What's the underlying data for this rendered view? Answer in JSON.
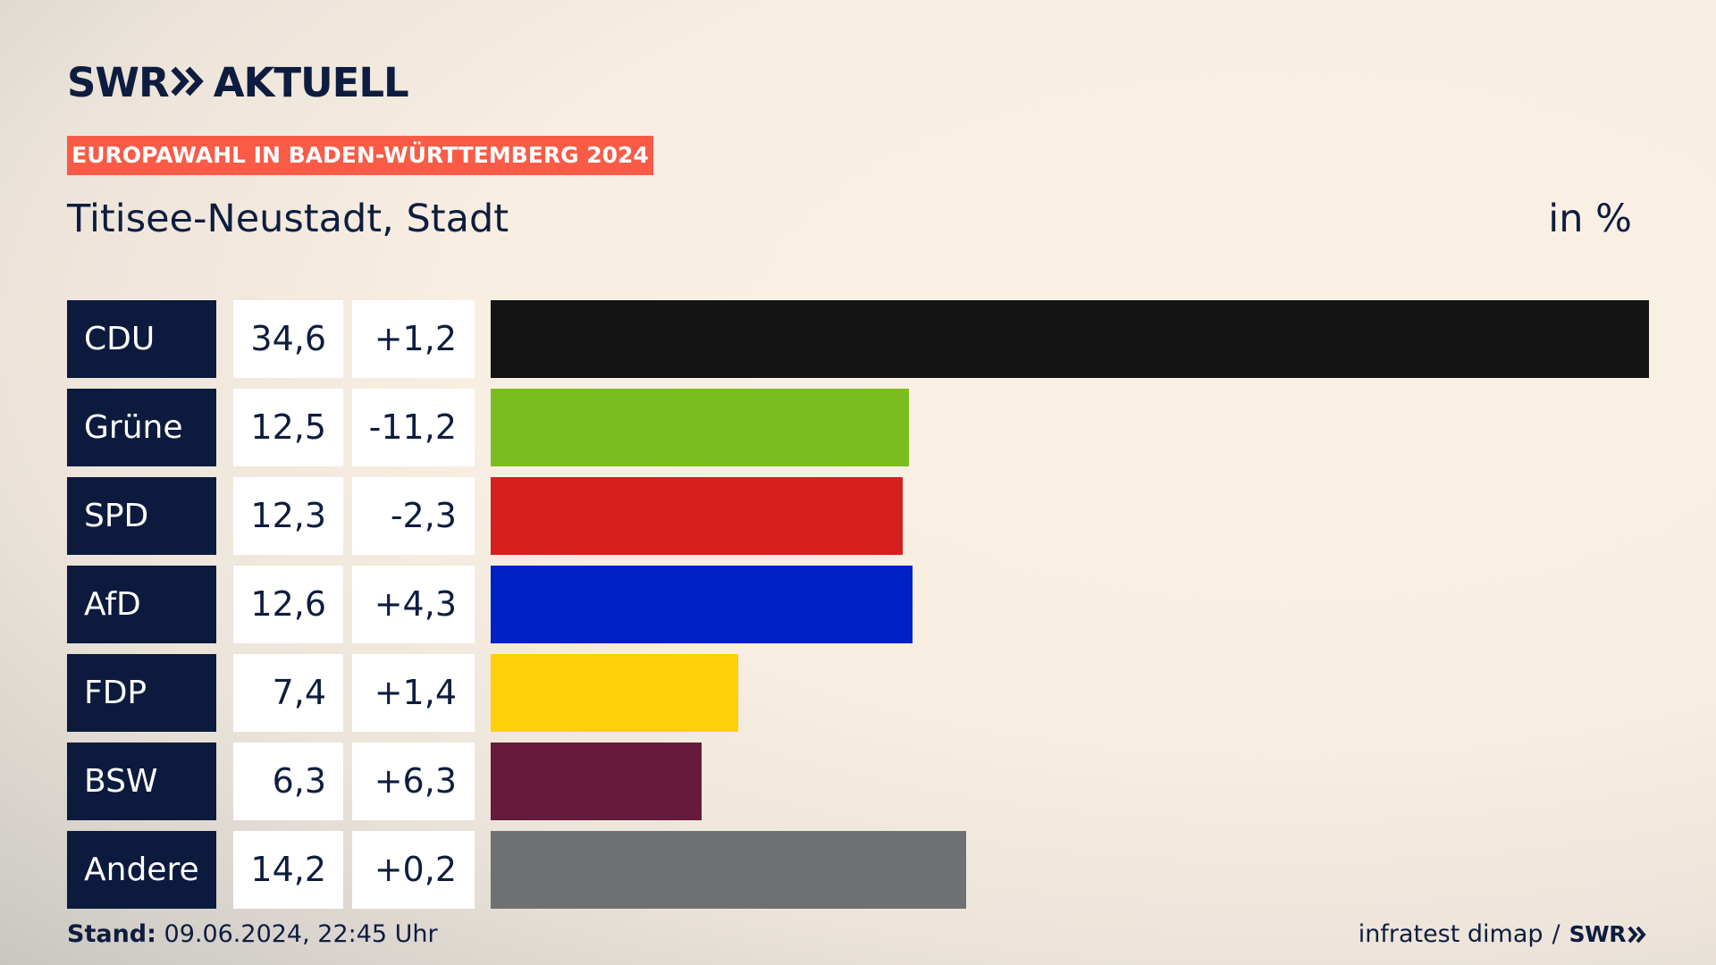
{
  "brand": {
    "logo_prefix": "SWR",
    "logo_suffix": "AKTUELL",
    "logo_icon": "double-chevron-right-icon"
  },
  "tag": "EUROPAWAHL IN BADEN-WÜRTTEMBERG 2024",
  "subtitle": "Titisee-Neustadt, Stadt",
  "unit": "in %",
  "chart_data": {
    "type": "bar",
    "orientation": "horizontal",
    "categories": [
      "CDU",
      "Grüne",
      "SPD",
      "AfD",
      "FDP",
      "BSW",
      "Andere"
    ],
    "values": [
      34.6,
      12.5,
      12.3,
      12.6,
      7.4,
      6.3,
      14.2
    ],
    "value_labels": [
      "34,6",
      "12,5",
      "12,3",
      "12,6",
      "7,4",
      "6,3",
      "14,2"
    ],
    "changes": [
      1.2,
      -11.2,
      -2.3,
      4.3,
      1.4,
      6.3,
      0.2
    ],
    "change_labels": [
      "+1,2",
      "-11,2",
      "-2,3",
      "+4,3",
      "+1,4",
      "+6,3",
      "+0,2"
    ],
    "colors": [
      "#141414",
      "#7bbd1e",
      "#d61f1f",
      "#0020c8",
      "#ffcf0a",
      "#661a3c",
      "#6f7072"
    ],
    "xlim": [
      0,
      34.6
    ],
    "grid": false,
    "legend": "none"
  },
  "footer": {
    "stand_label": "Stand:",
    "stand_value": "09.06.2024, 22:45 Uhr",
    "source": "infratest dimap",
    "separator": "/",
    "source_logo": "SWR"
  }
}
